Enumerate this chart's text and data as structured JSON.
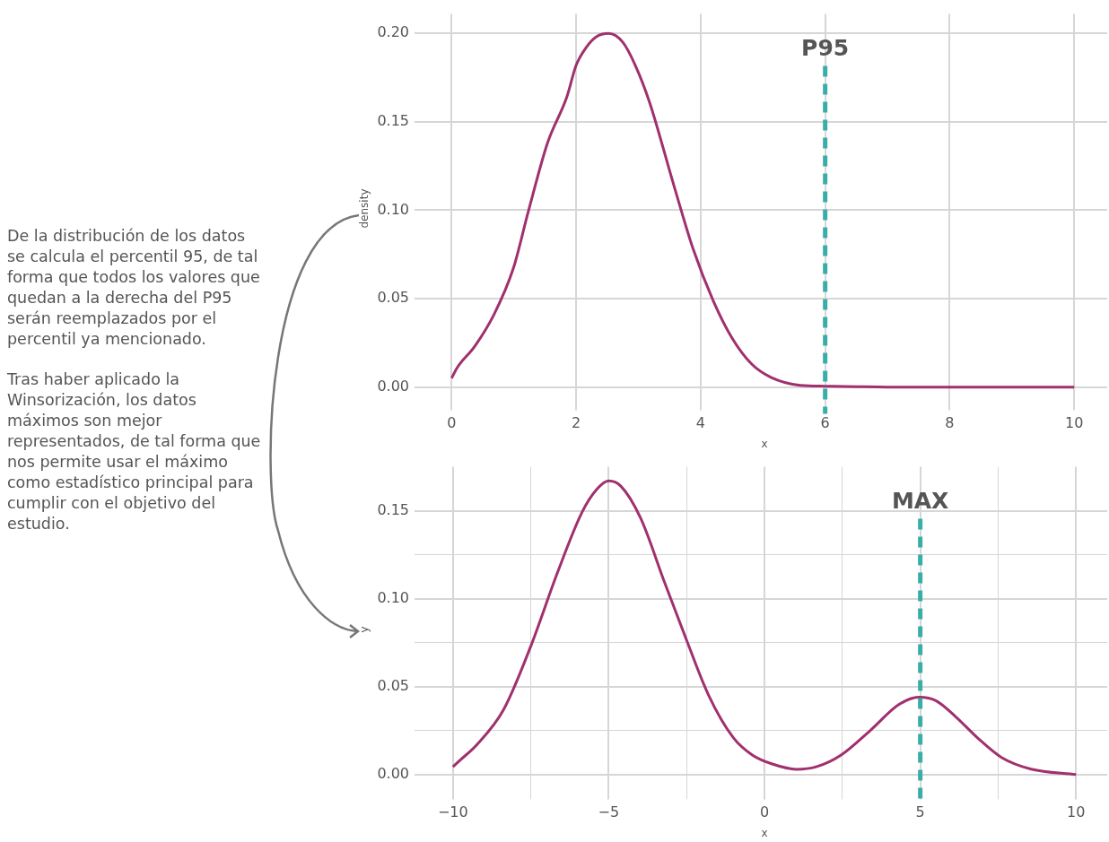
{
  "chart_data": [
    {
      "type": "other",
      "annotations": [
        "De la distribución de los datos se calcula el percentil 95, de tal forma que todos los valores que quedan a la derecha del P95 serán reemplazados por el percentil ya mencionado.",
        "Tras haber aplicado la Winsorización, los datos máximos son mejor representados, de tal forma que nos permite usar el máximo como estadístico principal para cumplir con el objetivo del estudio."
      ]
    },
    {
      "type": "line",
      "xlabel": "x",
      "ylabel": "density",
      "color": "#a0306e",
      "marker": "none",
      "grid": true,
      "x": [
        0,
        0.09,
        0.37,
        0.68,
        0.99,
        1.23,
        1.54,
        1.85,
        2.0,
        2.16,
        2.32,
        2.52,
        2.75,
        2.95,
        3.18,
        3.57,
        3.88,
        4.2,
        4.5,
        4.82,
        5.13,
        5.6,
        6.0,
        6.5,
        7,
        8,
        9,
        10
      ],
      "values": [
        0.005,
        0.011,
        0.023,
        0.041,
        0.067,
        0.099,
        0.138,
        0.164,
        0.182,
        0.192,
        0.198,
        0.2,
        0.195,
        0.182,
        0.161,
        0.114,
        0.078,
        0.049,
        0.028,
        0.013,
        0.0055,
        0.001,
        0.0005,
        0.0002,
        0,
        0,
        0,
        0
      ],
      "xlim": [
        -0.48,
        10.53
      ],
      "ylim": [
        -0.009,
        0.211
      ],
      "xticks": [
        0,
        2,
        4,
        6,
        8,
        10
      ],
      "yticks": [
        {
          "value": 0,
          "label": "0.00"
        },
        {
          "value": 0.05,
          "label": "0.05"
        },
        {
          "value": 0.1,
          "label": "0.10"
        },
        {
          "value": 0.15,
          "label": "0.15"
        },
        {
          "value": 0.2,
          "label": "0.20"
        }
      ],
      "ref_lines": [
        {
          "axis": "x",
          "value": 6,
          "label": "P95",
          "color": "#3aada8",
          "line_style": "dashed"
        }
      ]
    },
    {
      "type": "line",
      "xlabel": "x",
      "ylabel": "y",
      "color": "#a0306e",
      "marker": "none",
      "grid": true,
      "x": [
        -10,
        -9.78,
        -9.23,
        -8.37,
        -7.5,
        -6.64,
        -5.86,
        -5.39,
        -5,
        -4.61,
        -3.98,
        -3.2,
        -2.49,
        -1.79,
        -1.0,
        -0.38,
        0.25,
        1.03,
        1.66,
        2.45,
        3.39,
        4.33,
        4.98,
        5.5,
        6.13,
        6.83,
        7.62,
        8.56,
        10
      ],
      "values": [
        0.0044,
        0.008,
        0.017,
        0.037,
        0.073,
        0.115,
        0.149,
        0.162,
        0.167,
        0.164,
        0.146,
        0.109,
        0.076,
        0.045,
        0.021,
        0.011,
        0.006,
        0.003,
        0.0044,
        0.011,
        0.025,
        0.04,
        0.044,
        0.042,
        0.033,
        0.021,
        0.0096,
        0.0031,
        0
      ],
      "xlim": [
        -11,
        11
      ],
      "ylim": [
        -0.01,
        0.175
      ],
      "xticks": [
        {
          "value": -10,
          "label": "−10"
        },
        {
          "value": -7.5,
          "label": null
        },
        {
          "value": -5,
          "label": "−5"
        },
        {
          "value": -2.5,
          "label": null
        },
        0,
        {
          "value": 2.5,
          "label": null
        },
        5,
        {
          "value": 7.5,
          "label": null
        },
        10
      ],
      "yticks": [
        {
          "value": 0,
          "label": "0.00"
        },
        {
          "value": 0.025,
          "label": null
        },
        {
          "value": 0.05,
          "label": "0.05"
        },
        {
          "value": 0.075,
          "label": null
        },
        {
          "value": 0.1,
          "label": "0.10"
        },
        {
          "value": 0.125,
          "label": null
        },
        {
          "value": 0.15,
          "label": "0.15"
        }
      ],
      "ref_lines": [
        {
          "axis": "x",
          "value": 5,
          "label": "MAX",
          "color": "#3aada8",
          "line_style": "dashed"
        }
      ]
    }
  ]
}
